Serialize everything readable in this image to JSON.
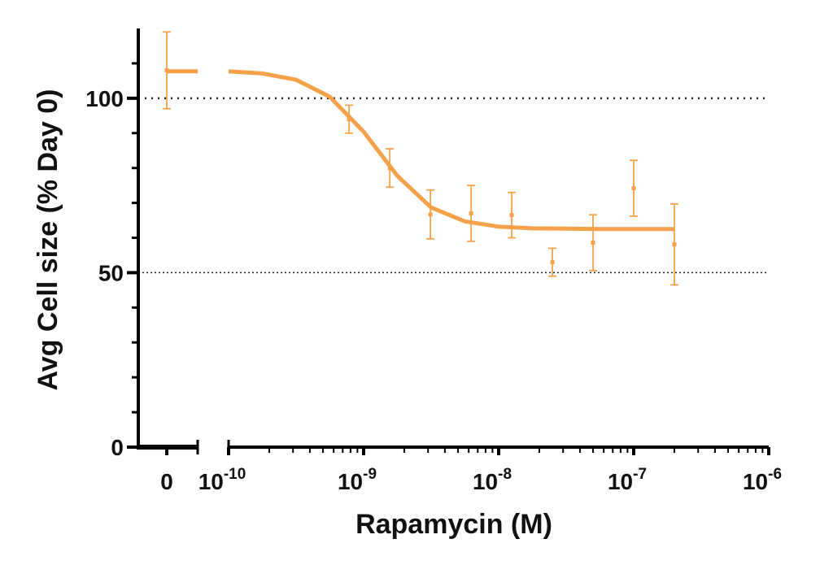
{
  "chart_data": {
    "type": "dose-response",
    "xlabel": "Rapamycin (M)",
    "ylabel": "Avg Cell size (%  Day 0)",
    "xlog": true,
    "xlim": [
      1e-10,
      1e-06
    ],
    "xticks": [
      {
        "value": 1e-10,
        "label": "10",
        "exponent": "-10"
      },
      {
        "value": 1e-09,
        "label": "10",
        "exponent": "-9"
      },
      {
        "value": 1e-08,
        "label": "10",
        "exponent": "-8"
      },
      {
        "value": 1e-07,
        "label": "10",
        "exponent": "-7"
      },
      {
        "value": 1e-06,
        "label": "10",
        "exponent": "-6"
      }
    ],
    "zero_xtick": 0,
    "ylim": [
      0,
      120
    ],
    "yticks": [
      0,
      50,
      100
    ],
    "yminor_ticks": [
      10,
      20,
      30,
      40,
      60,
      70,
      80,
      90,
      110
    ],
    "reference_lines": [
      100,
      50
    ],
    "color": "#f5a14a",
    "control": {
      "x": 0,
      "value": 108,
      "error": 11
    },
    "series": [
      {
        "x": [
          7.8e-10,
          1.5625e-09,
          3.125e-09,
          6.25e-09,
          1.25e-08,
          2.5e-08,
          5e-08,
          1e-07,
          2e-07
        ],
        "values": [
          94,
          80,
          66.7,
          67,
          66.5,
          53,
          58.6,
          74.2,
          58.1
        ],
        "errors": [
          4,
          5.5,
          7,
          8,
          6.5,
          4,
          8,
          8,
          11.6
        ]
      }
    ],
    "fit": {
      "x": [
        1e-10,
        1.78e-10,
        3.16e-10,
        5.62e-10,
        1e-09,
        1.78e-09,
        3.16e-09,
        5.62e-09,
        1e-08,
        1.78e-08,
        3.16e-08,
        5.62e-08,
        1e-07,
        2e-07
      ],
      "values": [
        107.7,
        107.1,
        105.3,
        100.4,
        90.4,
        77.7,
        68.7,
        64.7,
        63.2,
        62.7,
        62.6,
        62.5,
        62.5,
        62.5
      ]
    }
  }
}
